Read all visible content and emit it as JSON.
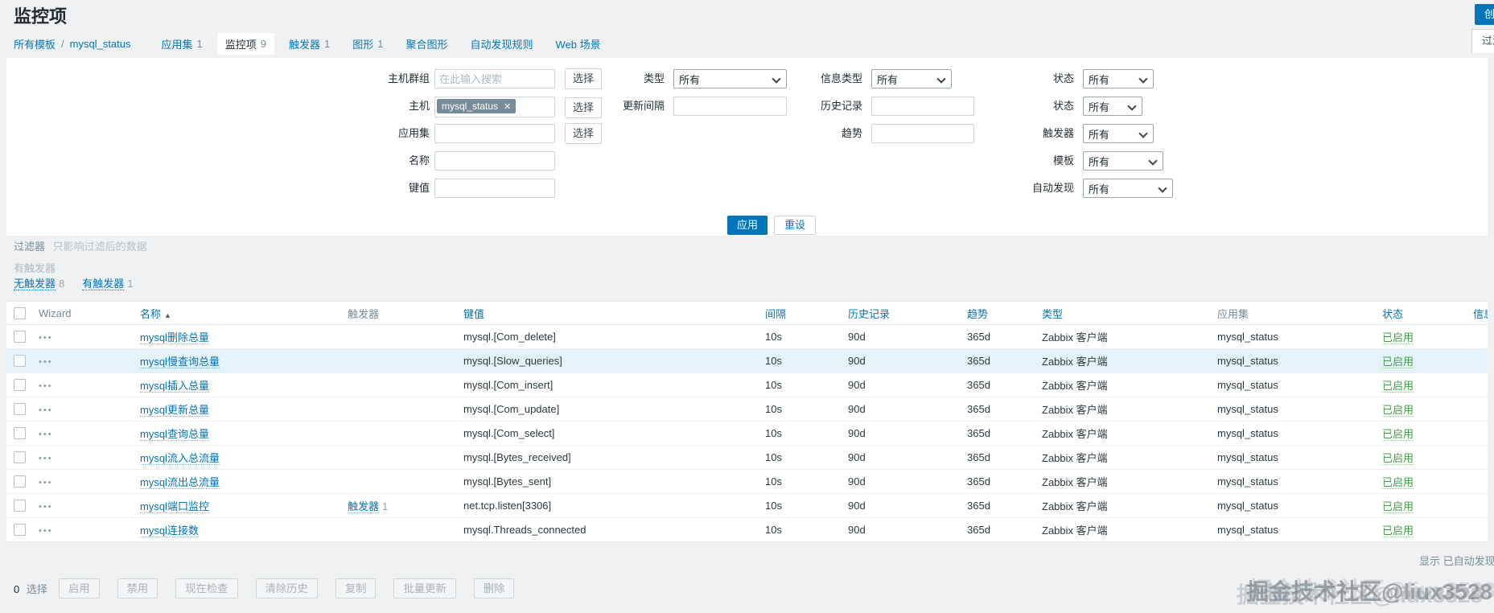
{
  "title": "监控项",
  "header": {
    "create_button": "创建监控项",
    "filter_toggle": "过滤器"
  },
  "breadcrumb": {
    "all_templates": "所有模板",
    "separator": "/",
    "template": "mysql_status"
  },
  "tabs": [
    {
      "label": "应用集",
      "count": "1",
      "active": false
    },
    {
      "label": "监控项",
      "count": "9",
      "active": true
    },
    {
      "label": "触发器",
      "count": "1",
      "active": false
    },
    {
      "label": "图形",
      "count": "1",
      "active": false
    },
    {
      "label": "聚合图形",
      "count": "",
      "active": false
    },
    {
      "label": "自动发现规则",
      "count": "",
      "active": false
    },
    {
      "label": "Web 场景",
      "count": "",
      "active": false
    }
  ],
  "filter": {
    "fields": {
      "host_group_label": "主机群组",
      "host_group_placeholder": "在此输入搜索",
      "host_label": "主机",
      "host_chip": "mysql_status",
      "chip_remove_icon": "✕",
      "application_label": "应用集",
      "name_label": "名称",
      "key_label": "键值",
      "type_label": "类型",
      "update_interval_label": "更新间隔",
      "info_type_label": "信息类型",
      "history_label": "历史记录",
      "trends_label": "趋势",
      "status_label": "状态",
      "state_label": "状态",
      "triggers_label": "触发器",
      "template_label": "模板",
      "discovery_label": "自动发现",
      "all_option": "所有",
      "select_button": "选择"
    },
    "apply_button": "应用",
    "reset_button": "重设",
    "note_title": "过滤器",
    "note_text": "只影响过滤后的数据"
  },
  "subfilter": {
    "heading": "有触发器",
    "items": [
      {
        "label": "无触发器",
        "count": "8"
      },
      {
        "label": "有触发器",
        "count": "1"
      }
    ]
  },
  "table": {
    "wizard_icon": "•••",
    "headers": [
      {
        "label": "Wizard",
        "style": "plain"
      },
      {
        "label": "名称",
        "style": "sortable",
        "sort_arrow": "▲"
      },
      {
        "label": "触发器",
        "style": "plain"
      },
      {
        "label": "键值",
        "style": "link"
      },
      {
        "label": "间隔",
        "style": "link"
      },
      {
        "label": "历史记录",
        "style": "link"
      },
      {
        "label": "趋势",
        "style": "link"
      },
      {
        "label": "类型",
        "style": "link"
      },
      {
        "label": "应用集",
        "style": "plain"
      },
      {
        "label": "状态",
        "style": "link"
      },
      {
        "label": "信息",
        "style": "link"
      }
    ],
    "rows": [
      {
        "name": "mysql删除总量",
        "trigger": "",
        "trigger_count": "",
        "key": "mysql.[Com_delete]",
        "interval": "10s",
        "history": "90d",
        "trends": "365d",
        "type": "Zabbix 客户端",
        "applications": "mysql_status",
        "status": "已启用",
        "highlighted": false
      },
      {
        "name": "mysql慢查询总量",
        "trigger": "",
        "trigger_count": "",
        "key": "mysql.[Slow_queries]",
        "interval": "10s",
        "history": "90d",
        "trends": "365d",
        "type": "Zabbix 客户端",
        "applications": "mysql_status",
        "status": "已启用",
        "highlighted": true
      },
      {
        "name": "mysql插入总量",
        "trigger": "",
        "trigger_count": "",
        "key": "mysql.[Com_insert]",
        "interval": "10s",
        "history": "90d",
        "trends": "365d",
        "type": "Zabbix 客户端",
        "applications": "mysql_status",
        "status": "已启用",
        "highlighted": false
      },
      {
        "name": "mysql更新总量",
        "trigger": "",
        "trigger_count": "",
        "key": "mysql.[Com_update]",
        "interval": "10s",
        "history": "90d",
        "trends": "365d",
        "type": "Zabbix 客户端",
        "applications": "mysql_status",
        "status": "已启用",
        "highlighted": false
      },
      {
        "name": "mysql查询总量",
        "trigger": "",
        "trigger_count": "",
        "key": "mysql.[Com_select]",
        "interval": "10s",
        "history": "90d",
        "trends": "365d",
        "type": "Zabbix 客户端",
        "applications": "mysql_status",
        "status": "已启用",
        "highlighted": false
      },
      {
        "name": "mysql流入总流量",
        "trigger": "",
        "trigger_count": "",
        "key": "mysql.[Bytes_received]",
        "interval": "10s",
        "history": "90d",
        "trends": "365d",
        "type": "Zabbix 客户端",
        "applications": "mysql_status",
        "status": "已启用",
        "highlighted": false
      },
      {
        "name": "mysql流出总流量",
        "trigger": "",
        "trigger_count": "",
        "key": "mysql.[Bytes_sent]",
        "interval": "10s",
        "history": "90d",
        "trends": "365d",
        "type": "Zabbix 客户端",
        "applications": "mysql_status",
        "status": "已启用",
        "highlighted": false
      },
      {
        "name": "mysql端口监控",
        "trigger": "触发器",
        "trigger_count": "1",
        "key": "net.tcp.listen[3306]",
        "interval": "10s",
        "history": "90d",
        "trends": "365d",
        "type": "Zabbix 客户端",
        "applications": "mysql_status",
        "status": "已启用",
        "highlighted": false
      },
      {
        "name": "mysql连接数",
        "trigger": "",
        "trigger_count": "",
        "key": "mysql.Threads_connected",
        "interval": "10s",
        "history": "90d",
        "trends": "365d",
        "type": "Zabbix 客户端",
        "applications": "mysql_status",
        "status": "已启用",
        "highlighted": false
      }
    ],
    "footer_note": "显示 已自动发现的"
  },
  "action_bar": {
    "selected_count": "0",
    "selected_label": "选择",
    "buttons": [
      "启用",
      "禁用",
      "现在检查",
      "清除历史",
      "复制",
      "批量更新",
      "删除"
    ]
  },
  "watermark": "掘金技术社区@liux3528",
  "colors": {
    "accent": "#0275b8",
    "enabled_green": "#429e47",
    "chip_bg": "#768d99",
    "highlight_row": "#e6f2f9",
    "panel_bg": "#ffffff",
    "page_bg": "#f0f1f2"
  }
}
